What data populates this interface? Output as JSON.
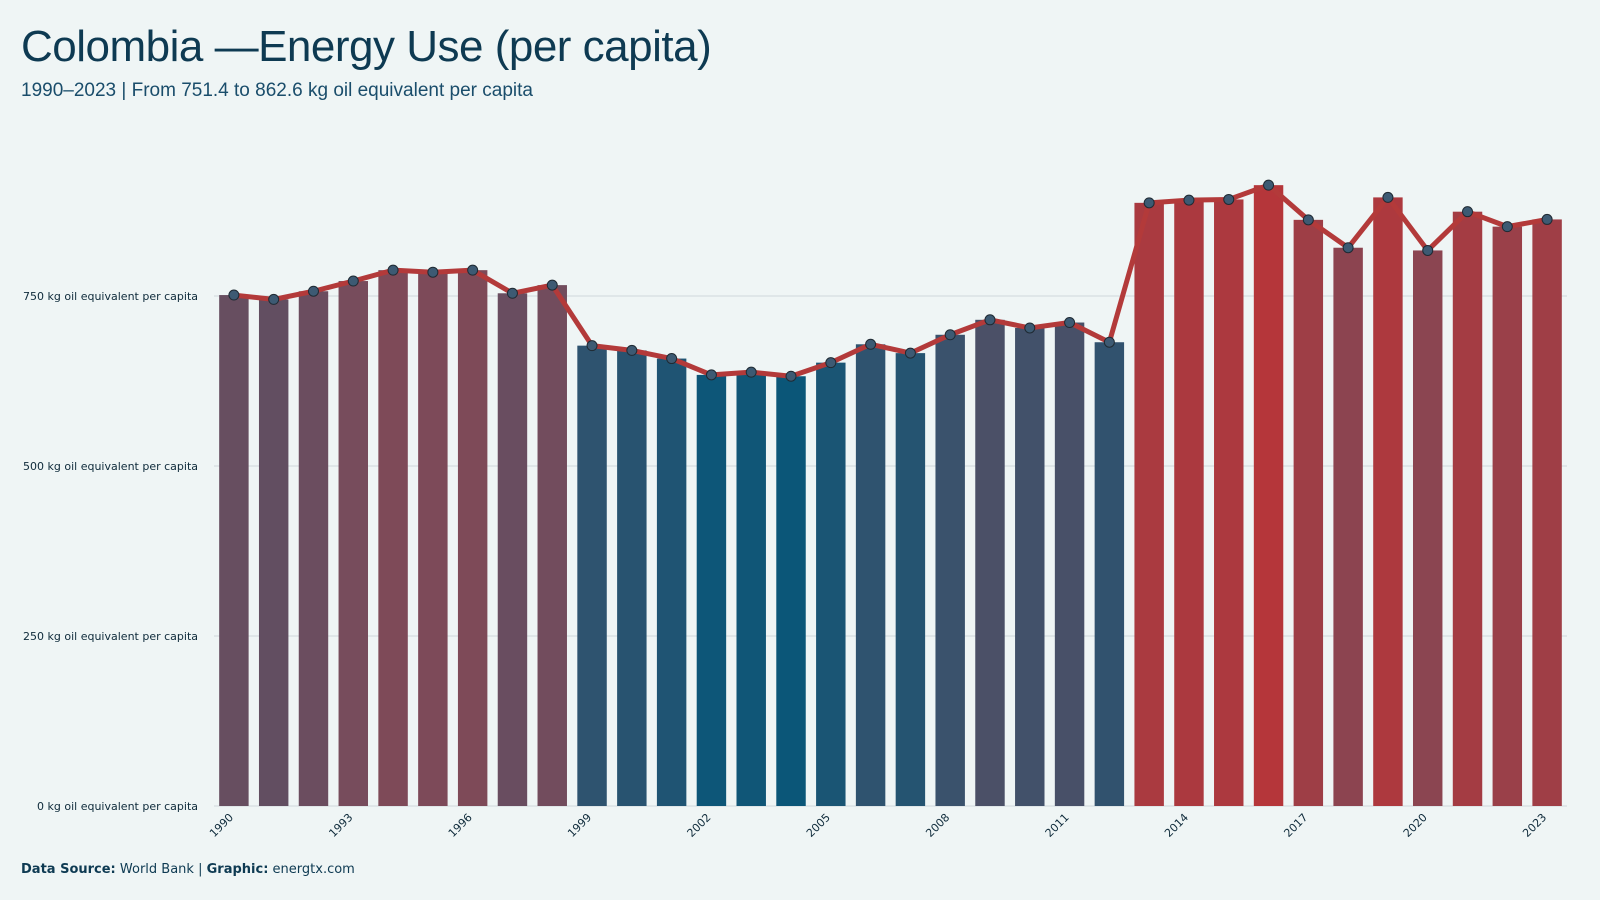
{
  "title": "Colombia —Energy Use (per capita)",
  "subtitle": "1990–2023 | From 751.4 to 862.6 kg oil equivalent per capita",
  "caption": {
    "source_label": "Data Source:",
    "source_value": "World Bank",
    "separator": "|",
    "graphic_label": "Graphic:",
    "graphic_value": "energtx.com"
  },
  "colors": {
    "background": "#eff5f5",
    "line": "#b33a3a",
    "low": "#0b5678",
    "mid": "#774c5c",
    "high": "#b5363a",
    "point_fill": "#3d5a73"
  },
  "chart_data": {
    "type": "bar",
    "categories": [
      "1990",
      "1991",
      "1992",
      "1993",
      "1994",
      "1995",
      "1996",
      "1997",
      "1998",
      "1999",
      "2000",
      "2001",
      "2002",
      "2003",
      "2004",
      "2005",
      "2006",
      "2007",
      "2008",
      "2009",
      "2010",
      "2011",
      "2012",
      "2013",
      "2014",
      "2015",
      "2016",
      "2017",
      "2018",
      "2019",
      "2020",
      "2021",
      "2022",
      "2023"
    ],
    "values": [
      751.4,
      745,
      757,
      772,
      788,
      785,
      788,
      754,
      766,
      677,
      670,
      658,
      634,
      638,
      632,
      652,
      679,
      666,
      693,
      715,
      703,
      711,
      682,
      887,
      891,
      892,
      913,
      862,
      821,
      895,
      817,
      874,
      852,
      862.6
    ],
    "overlay": "line",
    "ylim": [
      0,
      950
    ],
    "yticks": [
      0,
      250,
      500,
      750
    ],
    "ytick_labels": [
      "0 kg oil equivalent per capita",
      "250 kg oil equivalent per capita",
      "500 kg oil equivalent per capita",
      "750 kg oil equivalent per capita"
    ],
    "xtick_labels": [
      "1990",
      "1993",
      "1996",
      "1999",
      "2002",
      "2005",
      "2008",
      "2011",
      "2014",
      "2017",
      "2020",
      "2023"
    ],
    "xlabel": "",
    "ylabel": "",
    "grid": true,
    "legend": "none"
  }
}
